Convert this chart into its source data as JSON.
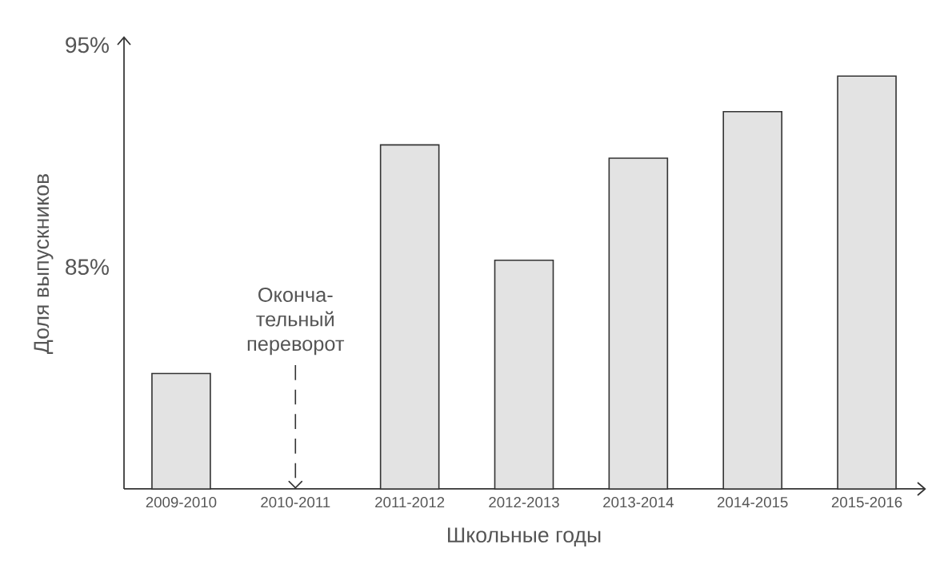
{
  "chart_data": {
    "type": "bar",
    "xlabel": "Школьные годы",
    "ylabel": "Доля выпускников",
    "categories": [
      "2009-2010",
      "2010-2011",
      "2011-2012",
      "2012-2013",
      "2013-2014",
      "2014-2015",
      "2015-2016"
    ],
    "values": [
      80.2,
      null,
      90.5,
      85.3,
      89.9,
      92.0,
      93.6
    ],
    "color": "#e3e3e3",
    "ylim": [
      75,
      95.3
    ],
    "yticks": [
      {
        "value": 85,
        "label": "85%"
      },
      {
        "value": 95,
        "label": "95%"
      }
    ],
    "ref_lines": [
      {
        "axis": "x",
        "value": "2010-2011",
        "label": "Оконча- тельный переворот",
        "line_style": "dashed"
      }
    ]
  }
}
